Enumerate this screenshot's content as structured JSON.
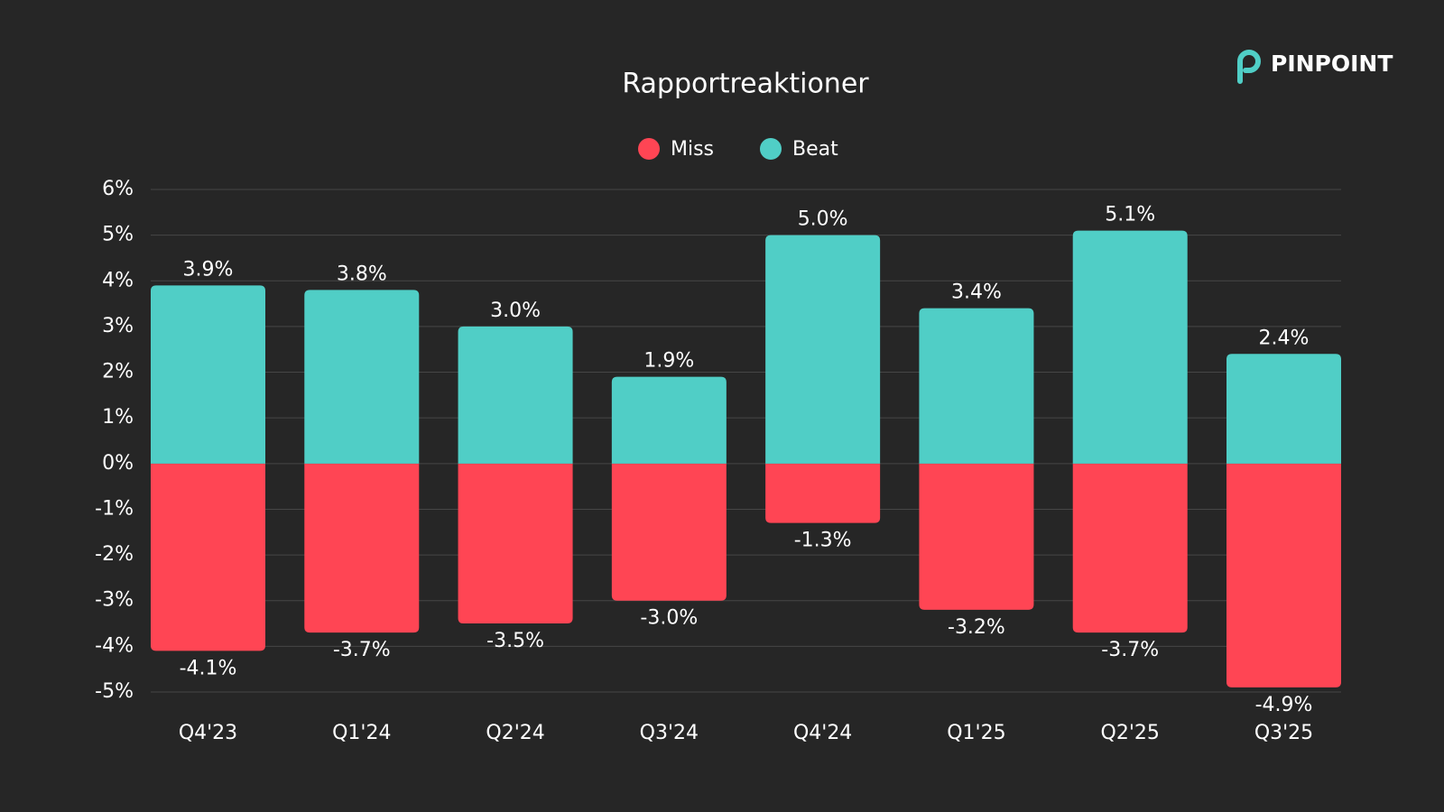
{
  "logo": "PINPOINT",
  "chart_data": {
    "type": "bar",
    "title": "Rapportreaktioner",
    "categories": [
      "Q4'23",
      "Q1'24",
      "Q2'24",
      "Q3'24",
      "Q4'24",
      "Q1'25",
      "Q2'25",
      "Q3'25"
    ],
    "series": [
      {
        "name": "Miss",
        "color": "#ff4554",
        "values": [
          -4.1,
          -3.7,
          -3.5,
          -3.0,
          -1.3,
          -3.2,
          -3.7,
          -4.9
        ],
        "value_labels": [
          "-4.1%",
          "-3.7%",
          "-3.5%",
          "-3.0%",
          "-1.3%",
          "-3.2%",
          "-3.7%",
          "-4.9%"
        ]
      },
      {
        "name": "Beat",
        "color": "#50cec6",
        "values": [
          3.9,
          3.8,
          3.0,
          1.9,
          5.0,
          3.4,
          5.1,
          2.4
        ],
        "value_labels": [
          "3.9%",
          "3.8%",
          "3.0%",
          "1.9%",
          "5.0%",
          "3.4%",
          "5.1%",
          "2.4%"
        ]
      }
    ],
    "ylim": [
      -5,
      6
    ],
    "yticks": [
      {
        "value": -5,
        "label": "-5%"
      },
      {
        "value": -4,
        "label": "-4%"
      },
      {
        "value": -3,
        "label": "-3%"
      },
      {
        "value": -2,
        "label": "-2%"
      },
      {
        "value": -1,
        "label": "-1%"
      },
      {
        "value": 0,
        "label": "0%"
      },
      {
        "value": 1,
        "label": "1%"
      },
      {
        "value": 2,
        "label": "2%"
      },
      {
        "value": 3,
        "label": "3%"
      },
      {
        "value": 4,
        "label": "4%"
      },
      {
        "value": 5,
        "label": "5%"
      },
      {
        "value": 6,
        "label": "6%"
      }
    ],
    "grid": true,
    "legend": "top"
  }
}
